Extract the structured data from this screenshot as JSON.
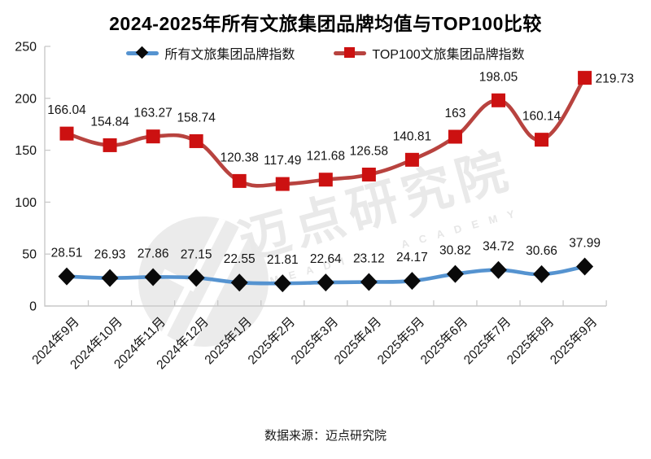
{
  "chart_data": {
    "type": "line",
    "title": "2024-2025年所有文旅集团品牌均值与TOP100比较",
    "categories": [
      "2024年9月",
      "2024年10月",
      "2024年11月",
      "2024年12月",
      "2025年1月",
      "2025年2月",
      "2025年3月",
      "2025年4月",
      "2025年5月",
      "2025年6月",
      "2025年7月",
      "2025年8月",
      "2025年9月"
    ],
    "series": [
      {
        "name": "所有文旅集团品牌指数",
        "values": [
          28.51,
          26.93,
          27.86,
          27.15,
          22.55,
          21.81,
          22.64,
          23.12,
          24.17,
          30.82,
          34.72,
          30.66,
          37.99
        ],
        "line_color": "#5593D0",
        "marker": "diamond",
        "marker_color": "#0A0A0A"
      },
      {
        "name": "TOP100文旅集团品牌指数",
        "values": [
          166.04,
          154.84,
          163.27,
          158.74,
          120.38,
          117.49,
          121.68,
          126.58,
          140.81,
          163,
          198.05,
          160.14,
          219.73
        ],
        "line_color": "#B8433F",
        "marker": "square",
        "marker_color": "#CC1111",
        "last_label_side": "right"
      }
    ],
    "xlabel": "",
    "ylabel": "",
    "ylim": [
      0,
      250
    ],
    "yticks": [
      0,
      50,
      100,
      150,
      200,
      250
    ],
    "grid": false,
    "legend_position": "top",
    "smooth": true,
    "axis_color": "#C9C9C9",
    "tick_label_color": "#141414",
    "data_label_color": "#141414"
  },
  "watermark": {
    "cn": "迈点研究院",
    "en": "MEADIN ACADEMY",
    "color": "#E9E9E9"
  },
  "footer": {
    "source_label": "数据来源：迈点研究院"
  }
}
